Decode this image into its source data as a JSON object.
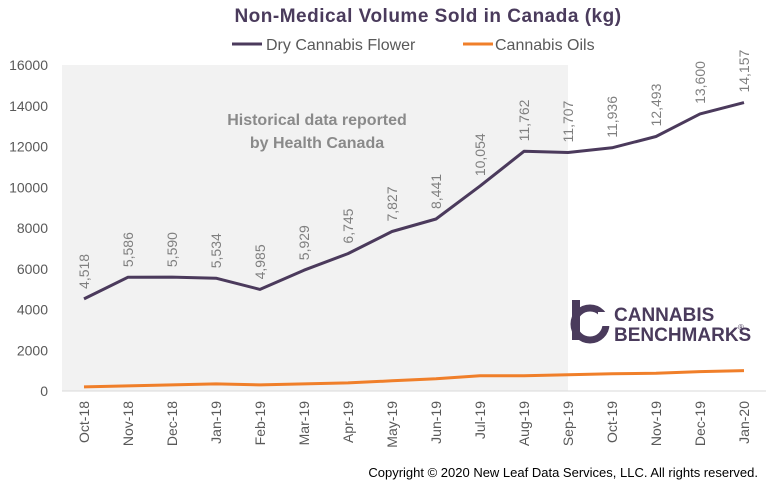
{
  "chart_data": {
    "type": "line",
    "title": "Non-Medical  Volume  Sold in Canada (kg)",
    "categories": [
      "Oct-18",
      "Nov-18",
      "Dec-18",
      "Jan-19",
      "Feb-19",
      "Mar-19",
      "Apr-19",
      "May-19",
      "Jun-19",
      "Jul-19",
      "Aug-19",
      "Sep-19",
      "Oct-19",
      "Nov-19",
      "Dec-19",
      "Jan-20"
    ],
    "series": [
      {
        "name": "Dry Cannabis Flower",
        "color": "#4b3a5c",
        "values": [
          4518,
          5586,
          5590,
          5534,
          4985,
          5929,
          6745,
          7827,
          8441,
          10054,
          11762,
          11707,
          11936,
          12493,
          13600,
          14157
        ],
        "labels": [
          "4,518",
          "5,586",
          "5,590",
          "5,534",
          "4,985",
          "5,929",
          "6,745",
          "7,827",
          "8,441",
          "10,054",
          "11,762",
          "11,707",
          "11,936",
          "12,493",
          "13,600",
          "14,157"
        ]
      },
      {
        "name": "Cannabis Oils",
        "color": "#f07f2a",
        "values": [
          200,
          250,
          300,
          350,
          300,
          350,
          400,
          500,
          600,
          750,
          750,
          800,
          850,
          870,
          950,
          1000
        ]
      }
    ],
    "ylim": [
      0,
      16000
    ],
    "yticks": [
      "0",
      "2000",
      "4000",
      "6000",
      "8000",
      "10000",
      "12000",
      "14000",
      "16000"
    ],
    "yticks_values": [
      0,
      2000,
      4000,
      6000,
      8000,
      10000,
      12000,
      14000,
      16000
    ],
    "shaded_region": {
      "from": "Oct-18",
      "to": "Sep-19",
      "label_line1": "Historical data reported",
      "label_line2": "by Health Canada"
    },
    "legend_position": "top-center",
    "grid": false
  },
  "brand": {
    "line1": "CANNABIS",
    "line2": "BENCHMARKS",
    "mark": "®",
    "color": "#4a3b5c"
  },
  "copyright": "Copyright © 2020 New Leaf Data Services, LLC. All rights reserved."
}
